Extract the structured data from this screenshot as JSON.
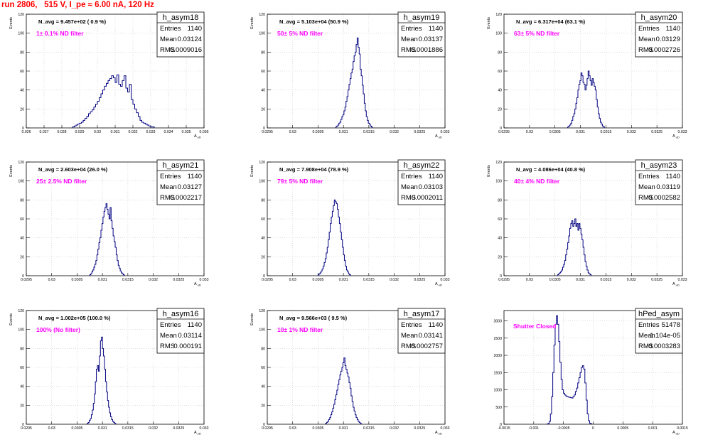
{
  "page": {
    "title": "run 2806,   515 V, I_pe ≈ 6.00 nA, 120 Hz"
  },
  "colors": {
    "title": "#ff0000",
    "annotation": "#ff00ff",
    "histogram_line": "#000080",
    "grid": "#c8c8c8"
  },
  "chart_data": [
    {
      "type": "histogram",
      "name": "h_asym18",
      "stats": {
        "entries": "1140",
        "mean": "0.03124",
        "rms": "0.0009016"
      },
      "avg_label": "N_avg = 9.457e+02 ( 0.9 %)",
      "filter_label": "1± 0.1% ND filter",
      "ylabel": "Events",
      "xlabel": "A_uD",
      "xlim": [
        0.026,
        0.036
      ],
      "ylim": [
        0,
        120
      ],
      "xticks": [
        0.026,
        0.027,
        0.028,
        0.029,
        0.03,
        0.031,
        0.032,
        0.033,
        0.034,
        0.035,
        0.036
      ],
      "xtick_labels": [
        "0.026",
        "0.027",
        "0.028",
        "0.029",
        "0.03",
        "0.031",
        "0.032",
        "0.033",
        "0.034",
        "0.035",
        "0.036"
      ],
      "yticks": [
        0,
        20,
        40,
        60,
        80,
        100,
        120
      ],
      "bins": {
        "start": 0.0286,
        "width": 0.0001,
        "values": [
          1,
          2,
          3,
          4,
          5,
          6,
          8,
          10,
          12,
          15,
          17,
          19,
          22,
          25,
          28,
          32,
          36,
          40,
          44,
          47,
          50,
          52,
          55,
          53,
          48,
          56,
          46,
          44,
          50,
          55,
          42,
          38,
          46,
          30,
          25,
          20,
          16,
          12,
          8,
          6,
          5,
          4,
          3,
          2,
          1,
          1
        ]
      }
    },
    {
      "type": "histogram",
      "name": "h_asym19",
      "stats": {
        "entries": "1140",
        "mean": "0.03137",
        "rms": "0.0001886"
      },
      "avg_label": "N_avg = 5.103e+04 (50.9 %)",
      "filter_label": "50± 5% ND filter",
      "ylabel": "Events",
      "xlabel": "A_uD",
      "xlim": [
        0.0295,
        0.033
      ],
      "ylim": [
        0,
        120
      ],
      "xticks": [
        0.0295,
        0.03,
        0.0305,
        0.031,
        0.0315,
        0.032,
        0.0325,
        0.033
      ],
      "xtick_labels": [
        "0.0295",
        "0.03",
        "0.0305",
        "0.031",
        "0.0315",
        "0.032",
        "0.0325",
        "0.033"
      ],
      "yticks": [
        0,
        20,
        40,
        60,
        80,
        100,
        120
      ],
      "bins": {
        "start": 0.03085,
        "width": 2e-05,
        "values": [
          1,
          2,
          3,
          5,
          6,
          9,
          12,
          14,
          18,
          22,
          28,
          33,
          40,
          46,
          52,
          58,
          62,
          70,
          76,
          80,
          88,
          95,
          85,
          78,
          62,
          55,
          45,
          36,
          26,
          18,
          12,
          8,
          5,
          4,
          2,
          1
        ]
      }
    },
    {
      "type": "histogram",
      "name": "h_asym20",
      "stats": {
        "entries": "1140",
        "mean": "0.03129",
        "rms": "0.0002726"
      },
      "avg_label": "N_avg = 6.317e+04 (63.1 %)",
      "filter_label": "63± 5% ND filter",
      "ylabel": "Events",
      "xlabel": "A_uD",
      "xlim": [
        0.0295,
        0.033
      ],
      "ylim": [
        0,
        120
      ],
      "xticks": [
        0.0295,
        0.03,
        0.0305,
        0.031,
        0.0315,
        0.032,
        0.0325,
        0.033
      ],
      "xtick_labels": [
        "0.0295",
        "0.03",
        "0.0305",
        "0.031",
        "0.0315",
        "0.032",
        "0.0325",
        "0.033"
      ],
      "yticks": [
        0,
        20,
        40,
        60,
        80,
        100,
        120
      ],
      "bins": {
        "start": 0.03075,
        "width": 2e-05,
        "values": [
          1,
          2,
          3,
          5,
          8,
          12,
          15,
          20,
          26,
          32,
          40,
          46,
          50,
          58,
          55,
          48,
          46,
          40,
          45,
          52,
          60,
          55,
          50,
          45,
          52,
          48,
          44,
          40,
          30,
          22,
          15,
          10,
          6,
          4,
          2,
          1
        ]
      }
    },
    {
      "type": "histogram",
      "name": "h_asym21",
      "stats": {
        "entries": "1140",
        "mean": "0.03127",
        "rms": "0.0002217"
      },
      "avg_label": "N_avg = 2.603e+04 (26.0 %)",
      "filter_label": "25± 2.5% ND filter",
      "ylabel": "Events",
      "xlabel": "A_uD",
      "xlim": [
        0.0295,
        0.033
      ],
      "ylim": [
        0,
        120
      ],
      "xticks": [
        0.0295,
        0.03,
        0.0305,
        0.031,
        0.0315,
        0.032,
        0.0325,
        0.033
      ],
      "xtick_labels": [
        "0.0295",
        "0.03",
        "0.0305",
        "0.031",
        "0.0315",
        "0.032",
        "0.0325",
        "0.033"
      ],
      "yticks": [
        0,
        20,
        40,
        60,
        80,
        100,
        120
      ],
      "bins": {
        "start": 0.03075,
        "width": 2e-05,
        "values": [
          1,
          2,
          4,
          6,
          9,
          12,
          16,
          22,
          28,
          35,
          40,
          48,
          55,
          62,
          68,
          72,
          76,
          70,
          65,
          60,
          72,
          58,
          50,
          42,
          36,
          30,
          22,
          16,
          11,
          8,
          5,
          3,
          2,
          1
        ]
      }
    },
    {
      "type": "histogram",
      "name": "h_asym22",
      "stats": {
        "entries": "1140",
        "mean": "0.03103",
        "rms": "0.0002011"
      },
      "avg_label": "N_avg = 7.908e+04 (78.9 %)",
      "filter_label": "79± 5% ND filter",
      "ylabel": "Events",
      "xlabel": "A_uD",
      "xlim": [
        0.0295,
        0.033
      ],
      "ylim": [
        0,
        120
      ],
      "xticks": [
        0.0295,
        0.03,
        0.0305,
        0.031,
        0.0315,
        0.032,
        0.0325,
        0.033
      ],
      "xtick_labels": [
        "0.0295",
        "0.03",
        "0.0305",
        "0.031",
        "0.0315",
        "0.032",
        "0.0325",
        "0.033"
      ],
      "yticks": [
        0,
        20,
        40,
        60,
        80,
        100,
        120
      ],
      "bins": {
        "start": 0.0305,
        "width": 2e-05,
        "values": [
          1,
          2,
          3,
          5,
          7,
          10,
          14,
          18,
          24,
          30,
          38,
          46,
          55,
          62,
          68,
          74,
          80,
          78,
          76,
          70,
          62,
          55,
          46,
          38,
          30,
          22,
          16,
          10,
          6,
          4,
          2,
          1
        ]
      }
    },
    {
      "type": "histogram",
      "name": "h_asym23",
      "stats": {
        "entries": "1140",
        "mean": "0.03119",
        "rms": "0.0002582"
      },
      "avg_label": "N_avg = 4.086e+04 (40.8 %)",
      "filter_label": "40± 4% ND filter",
      "ylabel": "Events",
      "xlabel": "A_uD",
      "xlim": [
        0.0295,
        0.033
      ],
      "ylim": [
        0,
        120
      ],
      "xticks": [
        0.0295,
        0.03,
        0.0305,
        0.031,
        0.0315,
        0.032,
        0.0325,
        0.033
      ],
      "xtick_labels": [
        "0.0295",
        "0.03",
        "0.0305",
        "0.031",
        "0.0315",
        "0.032",
        "0.0325",
        "0.033"
      ],
      "yticks": [
        0,
        20,
        40,
        60,
        80,
        100,
        120
      ],
      "bins": {
        "start": 0.03055,
        "width": 2e-05,
        "values": [
          1,
          2,
          3,
          4,
          6,
          9,
          12,
          16,
          22,
          28,
          35,
          42,
          50,
          55,
          58,
          52,
          55,
          60,
          52,
          55,
          48,
          55,
          50,
          44,
          38,
          30,
          22,
          15,
          10,
          6,
          3,
          2,
          1
        ]
      }
    },
    {
      "type": "histogram",
      "name": "h_asym16",
      "stats": {
        "entries": "1140",
        "mean": "0.03114",
        "rms": "0.000191"
      },
      "avg_label": "N_avg = 1.002e+05 (100.0 %)",
      "filter_label": "100% (No filter)",
      "ylabel": "Events",
      "xlabel": "A_uD",
      "xlim": [
        0.0295,
        0.033
      ],
      "ylim": [
        0,
        120
      ],
      "xticks": [
        0.0295,
        0.03,
        0.0305,
        0.031,
        0.0315,
        0.032,
        0.0325,
        0.033
      ],
      "xtick_labels": [
        "0.0295",
        "0.03",
        "0.0305",
        "0.031",
        "0.0315",
        "0.032",
        "0.0325",
        "0.033"
      ],
      "yticks": [
        0,
        20,
        40,
        60,
        80,
        100,
        120
      ],
      "bins": {
        "start": 0.0307,
        "width": 2e-05,
        "values": [
          1,
          2,
          4,
          6,
          10,
          15,
          22,
          32,
          45,
          58,
          62,
          56,
          72,
          88,
          92,
          80,
          72,
          58,
          45,
          34,
          25,
          18,
          12,
          8,
          5,
          3,
          2,
          1
        ]
      }
    },
    {
      "type": "histogram",
      "name": "h_asym17",
      "stats": {
        "entries": "1140",
        "mean": "0.03141",
        "rms": "0.0002757"
      },
      "avg_label": "N_avg = 9.566e+03 ( 9.5 %)",
      "filter_label": "10± 1% ND filter",
      "ylabel": "Events",
      "xlabel": "A_uD",
      "xlim": [
        0.0295,
        0.033
      ],
      "ylim": [
        0,
        120
      ],
      "xticks": [
        0.0295,
        0.03,
        0.0305,
        0.031,
        0.0315,
        0.032,
        0.0325,
        0.033
      ],
      "xtick_labels": [
        "0.0295",
        "0.03",
        "0.0305",
        "0.031",
        "0.0315",
        "0.032",
        "0.0325",
        "0.033"
      ],
      "yticks": [
        0,
        20,
        40,
        60,
        80,
        100,
        120
      ],
      "bins": {
        "start": 0.03065,
        "width": 2e-05,
        "values": [
          1,
          2,
          3,
          5,
          7,
          10,
          13,
          17,
          21,
          26,
          31,
          36,
          42,
          47,
          52,
          56,
          60,
          65,
          70,
          62,
          58,
          54,
          50,
          44,
          38,
          30,
          24,
          18,
          14,
          10,
          7,
          5,
          3,
          2,
          1
        ]
      }
    },
    {
      "type": "histogram",
      "name": "hPed_asym",
      "stats": {
        "entries": "51478",
        "mean": "1.104e-05",
        "rms": "0.0003283"
      },
      "avg_label": "",
      "filter_label": "Shutter Closed",
      "ylabel": "",
      "xlabel": "A_uD",
      "xlim": [
        -0.0015,
        0.0015
      ],
      "ylim": [
        0,
        3300
      ],
      "xticks": [
        -0.0015,
        -0.001,
        -0.0005,
        0,
        0.0005,
        0.001,
        0.0015
      ],
      "xtick_labels": [
        "-0.0015",
        "-0.001",
        "-0.0005",
        "0",
        "0.0005",
        "0.001",
        "0.0015"
      ],
      "yticks": [
        0,
        500,
        1000,
        1500,
        2000,
        2500,
        3000
      ],
      "bins": {
        "start": -0.00078,
        "width": 2e-05,
        "values": [
          5,
          20,
          80,
          300,
          800,
          1500,
          2300,
          2900,
          3150,
          2900,
          2400,
          1800,
          1300,
          1000,
          900,
          850,
          820,
          800,
          790,
          780,
          770,
          760,
          800,
          850,
          950,
          1050,
          1200,
          1350,
          1500,
          1650,
          1700,
          1600,
          1200,
          700,
          300,
          100,
          30,
          10
        ]
      }
    }
  ]
}
